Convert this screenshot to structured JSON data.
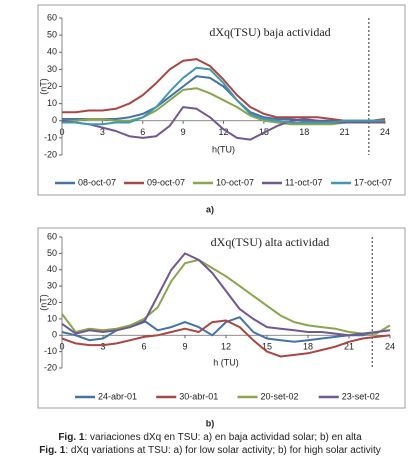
{
  "chart_data": [
    {
      "type": "line",
      "title": "dXq(TSU) baja actividad",
      "x_label": "h(TU)",
      "y_label": "(nT)",
      "x": [
        0,
        1,
        2,
        3,
        4,
        5,
        6,
        7,
        8,
        9,
        10,
        11,
        12,
        13,
        14,
        15,
        16,
        17,
        18,
        19,
        20,
        21,
        22,
        23,
        24
      ],
      "xlim": [
        0,
        24
      ],
      "ylim": [
        -20,
        60
      ],
      "xticks": [
        0,
        3,
        6,
        9,
        12,
        15,
        18,
        21,
        24
      ],
      "yticks": [
        -20,
        -10,
        0,
        10,
        20,
        30,
        40,
        50,
        60
      ],
      "marker_x": 22.8,
      "grid": false,
      "legend": "bottom",
      "panel_label": "a)",
      "series": [
        {
          "name": "08-oct-07",
          "color": "#4572a7",
          "values": [
            1,
            1,
            1,
            1,
            1,
            2,
            4,
            8,
            14,
            20,
            26,
            25,
            20,
            12,
            5,
            2,
            1,
            1,
            0,
            0,
            0,
            0,
            0,
            0,
            0
          ]
        },
        {
          "name": "09-oct-07",
          "color": "#aa4643",
          "values": [
            5,
            5,
            6,
            6,
            7,
            10,
            15,
            22,
            30,
            35,
            36,
            32,
            24,
            15,
            8,
            4,
            2,
            2,
            2,
            2,
            1,
            0,
            0,
            0,
            1
          ]
        },
        {
          "name": "10-oct-07",
          "color": "#89a54e",
          "values": [
            0,
            0,
            1,
            1,
            0,
            0,
            2,
            6,
            12,
            18,
            19,
            16,
            12,
            8,
            3,
            0,
            -1,
            -2,
            -2,
            -2,
            -2,
            -1,
            0,
            0,
            0
          ]
        },
        {
          "name": "11-oct-07",
          "color": "#71588f",
          "values": [
            0,
            -1,
            -2,
            -4,
            -6,
            -9,
            -10,
            -9,
            -3,
            8,
            7,
            2,
            -5,
            -10,
            -11,
            -7,
            -3,
            0,
            1,
            0,
            -1,
            -1,
            -1,
            -1,
            -1
          ]
        },
        {
          "name": "17-oct-07",
          "color": "#4198af",
          "values": [
            -1,
            -1,
            -2,
            -2,
            -1,
            -1,
            2,
            8,
            17,
            25,
            31,
            30,
            22,
            12,
            4,
            1,
            0,
            -1,
            -1,
            -1,
            -1,
            0,
            0,
            0,
            0
          ]
        }
      ]
    },
    {
      "type": "line",
      "title": "dXq(TSU) alta actividad",
      "x_label": "h (TU)",
      "y_label": "(nT)",
      "x": [
        0,
        1,
        2,
        3,
        4,
        5,
        6,
        7,
        8,
        9,
        10,
        11,
        12,
        13,
        14,
        15,
        16,
        17,
        18,
        19,
        20,
        21,
        22,
        23,
        24
      ],
      "xlim": [
        0,
        24
      ],
      "ylim": [
        -20,
        60
      ],
      "xticks": [
        0,
        3,
        6,
        9,
        12,
        15,
        18,
        21,
        24
      ],
      "yticks": [
        -20,
        -10,
        0,
        10,
        20,
        30,
        40,
        50,
        60
      ],
      "marker_x": 22.7,
      "grid": false,
      "legend": "bottom",
      "panel_label": "b)",
      "series": [
        {
          "name": "24-abr-01",
          "color": "#4572a7",
          "values": [
            2,
            0,
            -3,
            -2,
            3,
            6,
            9,
            3,
            5,
            8,
            5,
            0,
            8,
            11,
            2,
            -2,
            -3,
            -4,
            -3,
            -2,
            -1,
            0,
            0,
            2,
            3
          ]
        },
        {
          "name": "30-abr-01",
          "color": "#aa4643",
          "values": [
            -2,
            -5,
            -6,
            -6,
            -5,
            -3,
            -1,
            0,
            2,
            4,
            2,
            8,
            9,
            5,
            -3,
            -10,
            -13,
            -12,
            -11,
            -9,
            -7,
            -4,
            -2,
            -1,
            0
          ]
        },
        {
          "name": "20-set-02",
          "color": "#89a54e",
          "values": [
            13,
            2,
            4,
            3,
            4,
            6,
            10,
            17,
            33,
            44,
            46,
            41,
            36,
            30,
            24,
            18,
            12,
            8,
            6,
            5,
            4,
            2,
            1,
            1,
            6
          ]
        },
        {
          "name": "23-set-02",
          "color": "#71588f",
          "values": [
            7,
            1,
            3,
            2,
            3,
            5,
            8,
            24,
            40,
            50,
            46,
            38,
            27,
            16,
            10,
            5,
            4,
            3,
            2,
            2,
            1,
            0,
            1,
            2,
            3
          ]
        }
      ]
    }
  ],
  "captions": [
    {
      "label": "Fig. 1",
      "text": ": variaciones dXq en TSU: a) en baja actividad solar; b) en alta"
    },
    {
      "label": "Fig. 1",
      "text": ": dXq variations at TSU: a) for low solar activity; b) for high solar activity"
    }
  ]
}
